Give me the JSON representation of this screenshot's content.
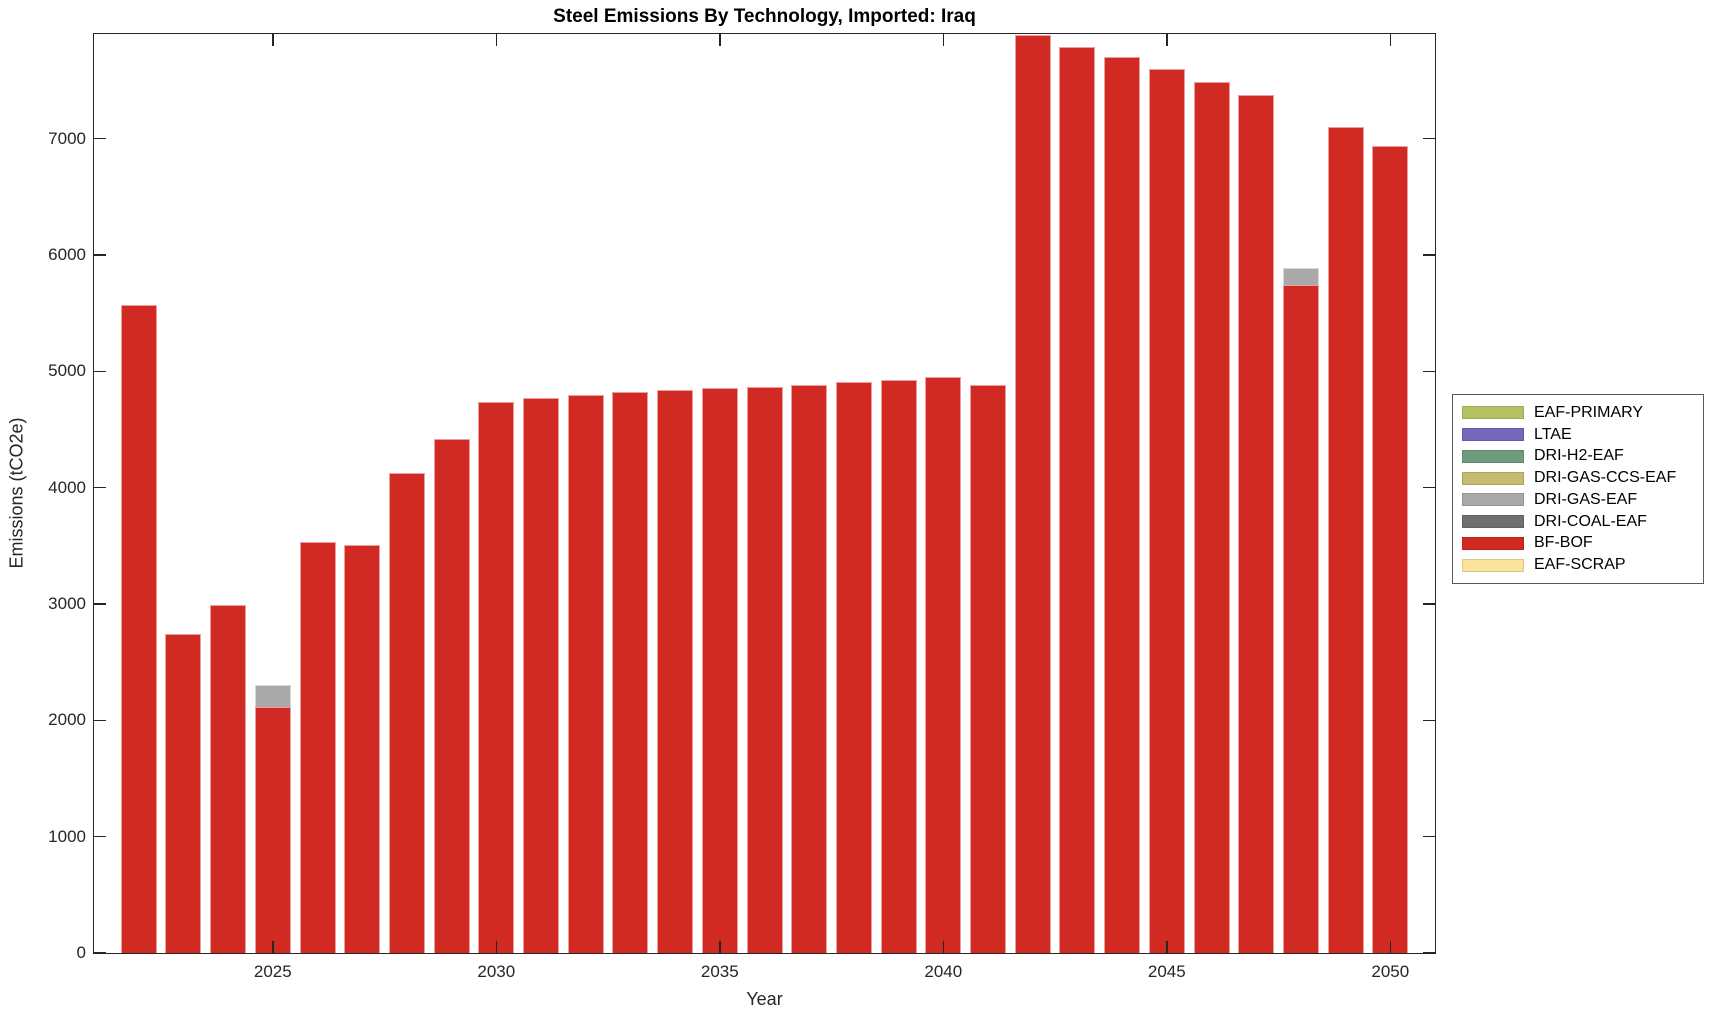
{
  "figure": {
    "title": "Steel Emissions By Technology, Imported: Iraq",
    "xlabel": "Year",
    "ylabel": "Emissions (tCO2e)"
  },
  "chart_data": {
    "type": "bar",
    "stacked": true,
    "title": "Steel Emissions By Technology, Imported: Iraq",
    "xlabel": "Year",
    "ylabel": "Emissions (tCO2e)",
    "x": [
      2022,
      2023,
      2024,
      2025,
      2026,
      2027,
      2028,
      2029,
      2030,
      2031,
      2032,
      2033,
      2034,
      2035,
      2036,
      2037,
      2038,
      2039,
      2040,
      2041,
      2042,
      2043,
      2044,
      2045,
      2046,
      2047,
      2048,
      2049,
      2050
    ],
    "series": [
      {
        "name": "BF-BOF",
        "color": "#d02a23",
        "values": [
          5570,
          2745,
          2995,
          2115,
          3535,
          3510,
          4130,
          4420,
          4740,
          4770,
          4795,
          4820,
          4840,
          4855,
          4870,
          4885,
          4905,
          4925,
          4950,
          4885,
          7890,
          7790,
          7700,
          7600,
          7490,
          7380,
          5745,
          7105,
          6940
        ]
      },
      {
        "name": "DRI-GAS-EAF",
        "color": "#a9a9a9",
        "values": [
          0,
          0,
          0,
          185,
          0,
          0,
          0,
          0,
          0,
          0,
          0,
          0,
          0,
          0,
          0,
          0,
          0,
          0,
          0,
          0,
          0,
          0,
          0,
          0,
          0,
          0,
          140,
          0,
          0
        ]
      }
    ],
    "legend": {
      "position": "right-outside",
      "entries": [
        {
          "label": "EAF-PRIMARY",
          "color": "#b5c162"
        },
        {
          "label": "LTAE",
          "color": "#7568b8"
        },
        {
          "label": "DRI-H2-EAF",
          "color": "#6f9c7d"
        },
        {
          "label": "DRI-GAS-CCS-EAF",
          "color": "#c4ba70"
        },
        {
          "label": "DRI-GAS-EAF",
          "color": "#a9a9a9"
        },
        {
          "label": "DRI-COAL-EAF",
          "color": "#6f6f6f"
        },
        {
          "label": "BF-BOF",
          "color": "#d02a23"
        },
        {
          "label": "EAF-SCRAP",
          "color": "#fae49c"
        }
      ]
    },
    "xlim": [
      2021,
      2051
    ],
    "ylim": [
      0,
      7900
    ],
    "xticks": [
      2025,
      2030,
      2035,
      2040,
      2045,
      2050
    ],
    "yticks": [
      0,
      1000,
      2000,
      3000,
      4000,
      5000,
      6000,
      7000
    ],
    "grid": false,
    "bar_width_years": 0.8,
    "background": "#ffffff",
    "axis_color": "#262626"
  }
}
